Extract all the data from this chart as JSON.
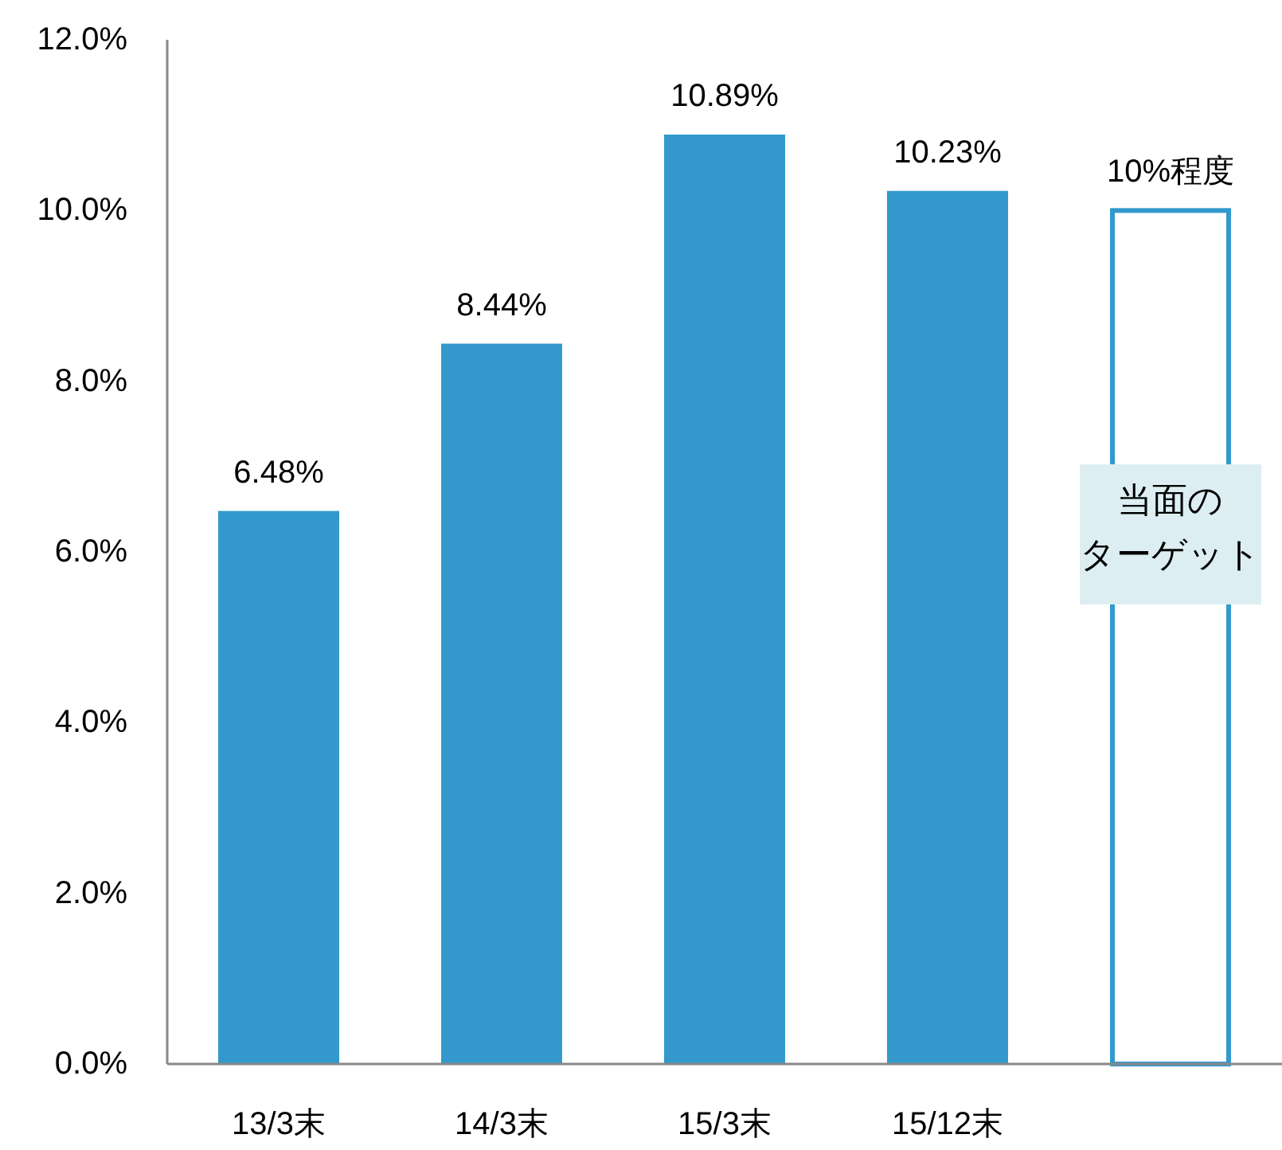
{
  "chart_data": {
    "type": "bar",
    "categories": [
      "13/3末",
      "14/3末",
      "15/3末",
      "15/12末",
      null
    ],
    "series": [
      {
        "color": "#3399cc",
        "values": [
          6.48,
          8.44,
          10.89,
          10.23,
          null
        ],
        "value_labels": [
          "6.48%",
          "8.44%",
          "10.89%",
          "10.23%",
          null
        ]
      },
      {
        "color": "#3399cc",
        "values": [
          null,
          null,
          null,
          null,
          10
        ],
        "value_labels": [
          null,
          null,
          null,
          null,
          "10%程度"
        ]
      }
    ],
    "ylim": [
      0,
      12
    ],
    "yticks": [
      {
        "value": 0,
        "label": "0.0%"
      },
      {
        "value": 2,
        "label": "2.0%"
      },
      {
        "value": 4,
        "label": "4.0%"
      },
      {
        "value": 6,
        "label": "6.0%"
      },
      {
        "value": 8,
        "label": "8.0%"
      },
      {
        "value": 10,
        "label": "10.0%"
      },
      {
        "value": 12,
        "label": "12.0%"
      }
    ],
    "annotations": [
      "当面の",
      "ターゲット"
    ],
    "grid": false
  }
}
